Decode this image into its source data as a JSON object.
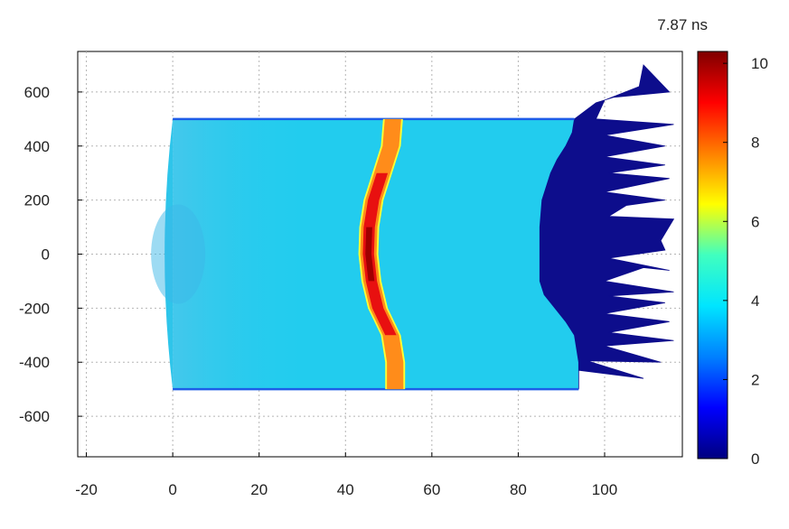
{
  "chart_data": {
    "type": "heatmap",
    "time_label": "7.87 ns",
    "xlabel": "",
    "ylabel": "",
    "xlim": [
      -22,
      118
    ],
    "ylim": [
      -750,
      750
    ],
    "xticks": [
      {
        "v": -20,
        "label": "-20"
      },
      {
        "v": 0,
        "label": "0"
      },
      {
        "v": 20,
        "label": "20"
      },
      {
        "v": 40,
        "label": "40"
      },
      {
        "v": 60,
        "label": "60"
      },
      {
        "v": 80,
        "label": "80"
      },
      {
        "v": 100,
        "label": "100"
      }
    ],
    "yticks": [
      {
        "v": 600,
        "label": "600"
      },
      {
        "v": 400,
        "label": "400"
      },
      {
        "v": 200,
        "label": "200"
      },
      {
        "v": 0,
        "label": "0"
      },
      {
        "v": -200,
        "label": "-200"
      },
      {
        "v": -400,
        "label": "-400"
      },
      {
        "v": -600,
        "label": "-600"
      }
    ],
    "grid": true,
    "colorbar": {
      "min": 0,
      "max": 10.3,
      "ticks": [
        {
          "v": 0,
          "label": "0"
        },
        {
          "v": 2,
          "label": "2"
        },
        {
          "v": 4,
          "label": "4"
        },
        {
          "v": 6,
          "label": "6"
        },
        {
          "v": 8,
          "label": "8"
        },
        {
          "v": 10,
          "label": "10"
        }
      ],
      "colors": [
        "#00007f",
        "#0000ff",
        "#0080ff",
        "#00e5ff",
        "#40ffbf",
        "#ffff00",
        "#ff8000",
        "#ff0000",
        "#7f0000"
      ]
    },
    "regions": {
      "main_block": {
        "x_range": [
          0,
          94
        ],
        "y_range": [
          -500,
          500
        ],
        "value": 3.6,
        "color": "#22ccee"
      },
      "left_bulge": {
        "x_min": -2.5,
        "value": 3.4,
        "color": "#2ec5ea"
      },
      "boundary_lines_y": [
        500,
        -500
      ],
      "boundary_color": "#1d5ce8",
      "shock_band": {
        "center_x": [
          {
            "y": 500,
            "x": 51
          },
          {
            "y": 400,
            "x": 50.5
          },
          {
            "y": 300,
            "x": 48.5
          },
          {
            "y": 200,
            "x": 46.5
          },
          {
            "y": 100,
            "x": 45.5
          },
          {
            "y": 0,
            "x": 45.3
          },
          {
            "y": -100,
            "x": 46
          },
          {
            "y": -200,
            "x": 47.5
          },
          {
            "y": -300,
            "x": 50.5
          },
          {
            "y": -400,
            "x": 51.5
          },
          {
            "y": -500,
            "x": 51.5
          }
        ],
        "peak_value": 10,
        "edge_value": 7.5
      },
      "low_density_front": {
        "value": 0,
        "color": "#0d0d8c",
        "inner_edge": [
          {
            "y": 500,
            "x": 93
          },
          {
            "y": 450,
            "x": 92.5
          },
          {
            "y": 400,
            "x": 91
          },
          {
            "y": 350,
            "x": 89
          },
          {
            "y": 300,
            "x": 87.5
          },
          {
            "y": 200,
            "x": 85.5
          },
          {
            "y": 100,
            "x": 85
          },
          {
            "y": 0,
            "x": 85
          },
          {
            "y": -100,
            "x": 85
          },
          {
            "y": -150,
            "x": 86
          },
          {
            "y": -200,
            "x": 88.5
          },
          {
            "y": -250,
            "x": 91
          },
          {
            "y": -300,
            "x": 93
          },
          {
            "y": -400,
            "x": 94
          },
          {
            "y": -500,
            "x": 94
          }
        ],
        "outer_edge": [
          {
            "x": 94,
            "y": -500
          },
          {
            "x": 94,
            "y": -430
          },
          {
            "x": 109,
            "y": -460
          },
          {
            "x": 96,
            "y": -395
          },
          {
            "x": 113,
            "y": -400
          },
          {
            "x": 100,
            "y": -340
          },
          {
            "x": 116,
            "y": -320
          },
          {
            "x": 101,
            "y": -290
          },
          {
            "x": 115,
            "y": -250
          },
          {
            "x": 100,
            "y": -220
          },
          {
            "x": 114,
            "y": -180
          },
          {
            "x": 101,
            "y": -155
          },
          {
            "x": 116,
            "y": -140
          },
          {
            "x": 100,
            "y": -100
          },
          {
            "x": 109,
            "y": -50
          },
          {
            "x": 115,
            "y": -60
          },
          {
            "x": 101,
            "y": -15
          },
          {
            "x": 114,
            "y": 15
          },
          {
            "x": 113,
            "y": 50
          },
          {
            "x": 116,
            "y": 130
          },
          {
            "x": 101,
            "y": 140
          },
          {
            "x": 105,
            "y": 180
          },
          {
            "x": 114,
            "y": 200
          },
          {
            "x": 100,
            "y": 230
          },
          {
            "x": 115,
            "y": 280
          },
          {
            "x": 101,
            "y": 300
          },
          {
            "x": 114,
            "y": 330
          },
          {
            "x": 100,
            "y": 360
          },
          {
            "x": 114,
            "y": 400
          },
          {
            "x": 100,
            "y": 440
          },
          {
            "x": 116,
            "y": 480
          },
          {
            "x": 98,
            "y": 500
          },
          {
            "x": 100,
            "y": 570
          },
          {
            "x": 108,
            "y": 620
          },
          {
            "x": 109,
            "y": 700
          },
          {
            "x": 115,
            "y": 600
          },
          {
            "x": 102,
            "y": 580
          },
          {
            "x": 98,
            "y": 560
          },
          {
            "x": 93,
            "y": 500
          }
        ]
      }
    }
  }
}
